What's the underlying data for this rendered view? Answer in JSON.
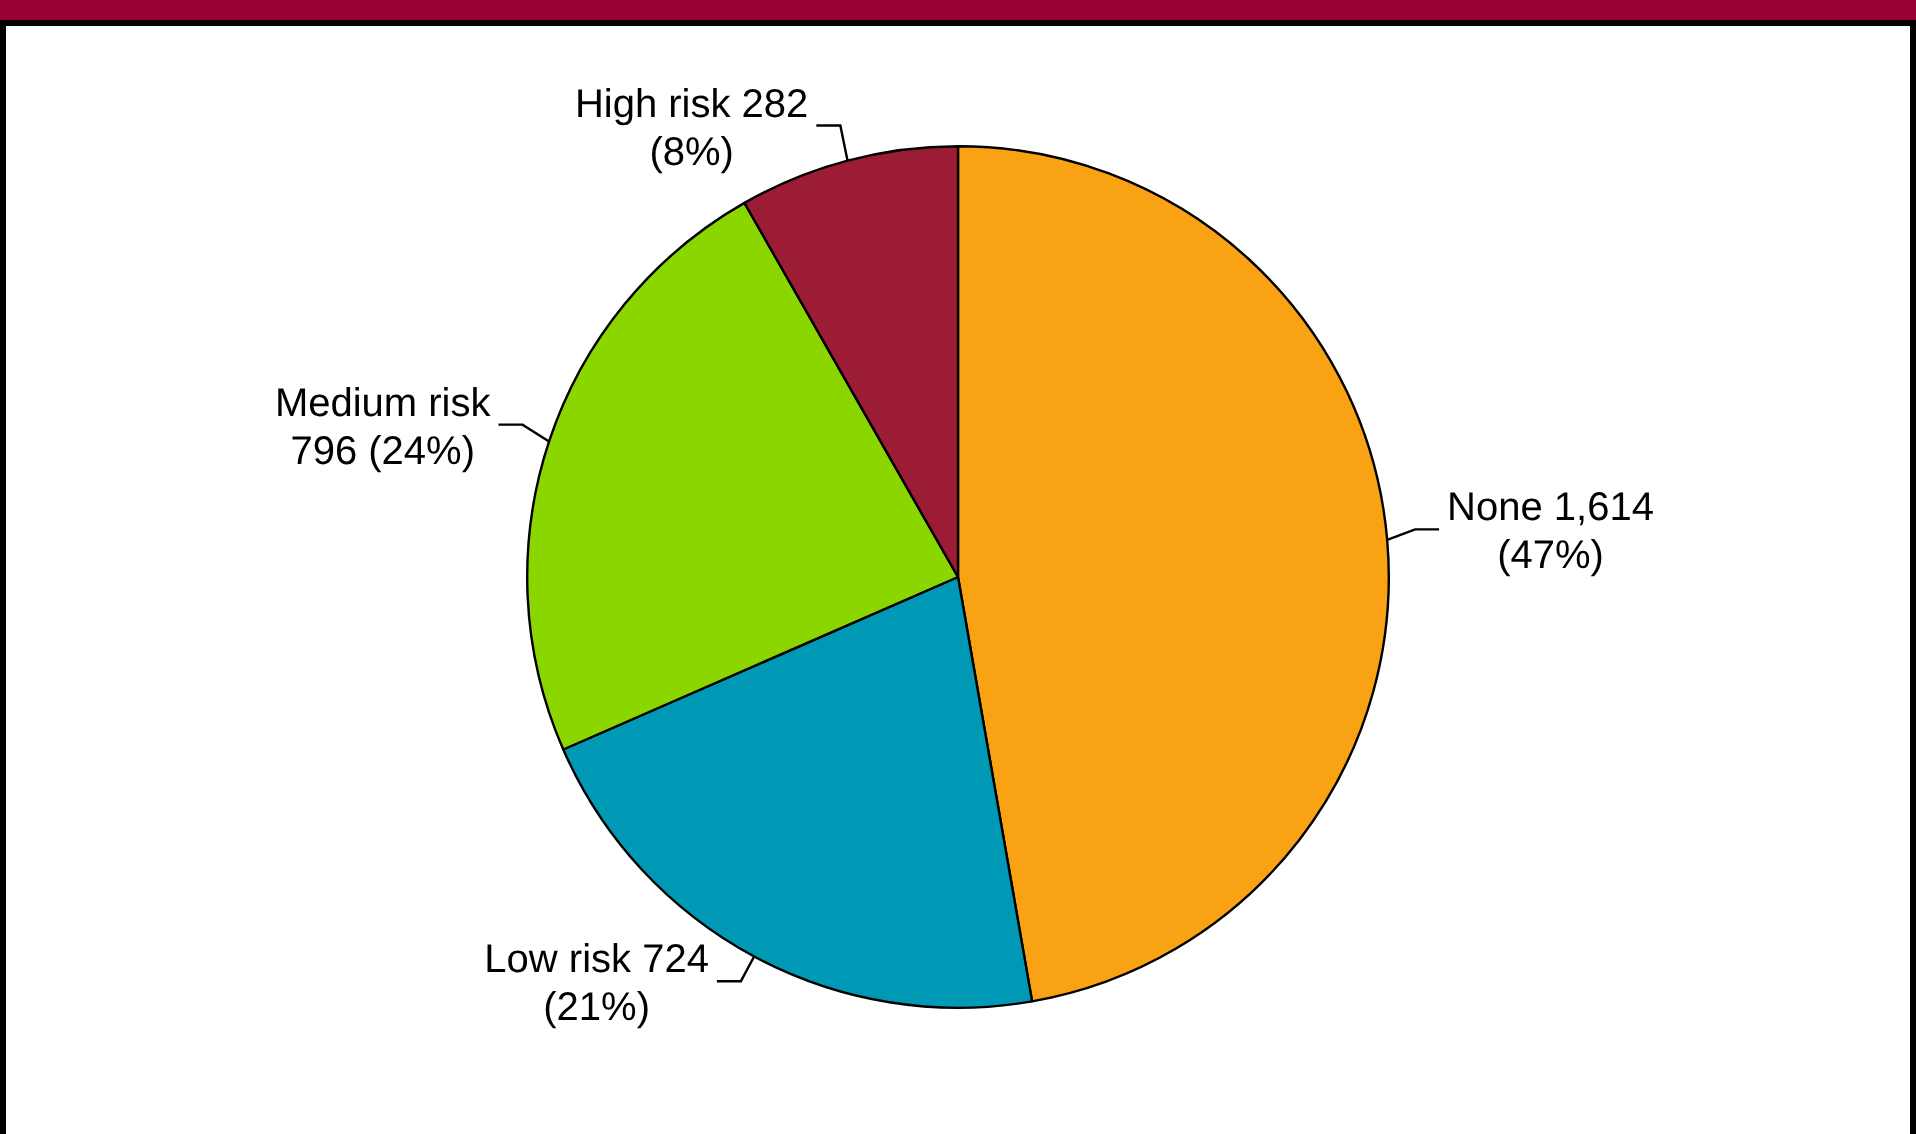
{
  "chart_data": {
    "type": "pie",
    "categories": [
      "None",
      "Low risk",
      "Medium risk",
      "High risk"
    ],
    "values": [
      1614,
      724,
      796,
      282
    ],
    "colors": [
      "#f9a213",
      "#0099b5",
      "#8cd600",
      "#9c1c35"
    ],
    "value_labels": [
      "1,614 (47%)",
      "724 (21%)",
      "796 (24%)",
      "282 (8%)"
    ],
    "legend": false
  }
}
